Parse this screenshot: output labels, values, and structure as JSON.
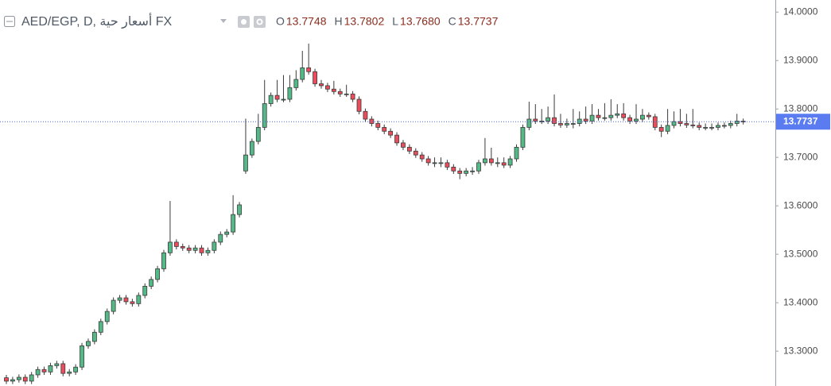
{
  "chart_data": {
    "type": "candlestick",
    "title": "AED/EGP, D, أسعار حية FX",
    "header": [
      {
        "label": "O",
        "value": "13.7748"
      },
      {
        "label": "H",
        "value": "13.7802"
      },
      {
        "label": "L",
        "value": "13.7680"
      },
      {
        "label": "C",
        "value": "13.7737"
      }
    ],
    "up_color": "#53b987",
    "down_color": "#eb4d5c",
    "ylim": [
      13.228,
      14.025
    ],
    "yticks": [
      {
        "value": 14.0,
        "label": "14.0000"
      },
      {
        "value": 13.9,
        "label": "13.9000"
      },
      {
        "value": 13.8,
        "label": "13.8000"
      },
      {
        "value": 13.7,
        "label": "13.7000"
      },
      {
        "value": 13.6,
        "label": "13.6000"
      },
      {
        "value": 13.5,
        "label": "13.5000"
      },
      {
        "value": 13.4,
        "label": "13.4000"
      },
      {
        "value": 13.3,
        "label": "13.3000"
      }
    ],
    "grid": false,
    "last_price": {
      "value": 13.7737,
      "label": "13.7737"
    },
    "open": [
      13.245,
      13.238,
      13.241,
      13.246,
      13.238,
      13.251,
      13.262,
      13.257,
      13.27,
      13.274,
      13.254,
      13.257,
      13.267,
      13.311,
      13.32,
      13.339,
      13.361,
      13.382,
      13.405,
      13.41,
      13.402,
      13.398,
      13.415,
      13.434,
      13.448,
      13.47,
      13.503,
      13.525,
      13.516,
      13.513,
      13.508,
      13.513,
      13.503,
      13.508,
      13.525,
      13.541,
      13.546,
      13.582,
      13.672,
      13.705,
      13.733,
      13.762,
      13.811,
      13.828,
      13.82,
      13.82,
      13.844,
      13.861,
      13.885,
      13.877,
      13.852,
      13.848,
      13.841,
      13.836,
      13.831,
      13.831,
      13.82,
      13.795,
      13.779,
      13.77,
      13.762,
      13.754,
      13.746,
      13.73,
      13.721,
      13.713,
      13.705,
      13.697,
      13.689,
      13.689,
      13.689,
      13.68,
      13.672,
      13.667,
      13.672,
      13.672,
      13.689,
      13.697,
      13.689,
      13.689,
      13.684,
      13.697,
      13.721,
      13.762,
      13.779,
      13.775,
      13.775,
      13.782,
      13.77,
      13.767,
      13.77,
      13.77,
      13.779,
      13.775,
      13.787,
      13.782,
      13.782,
      13.787,
      13.79,
      13.782,
      13.775,
      13.779,
      13.787,
      13.784,
      13.762,
      13.754,
      13.766,
      13.774,
      13.77,
      13.767,
      13.766,
      13.762,
      13.762,
      13.762,
      13.766,
      13.766,
      13.77,
      13.7748
    ],
    "high": [
      13.251,
      13.247,
      13.252,
      13.252,
      13.257,
      13.268,
      13.268,
      13.276,
      13.28,
      13.28,
      13.263,
      13.273,
      13.317,
      13.326,
      13.345,
      13.367,
      13.388,
      13.411,
      13.416,
      13.416,
      13.408,
      13.421,
      13.44,
      13.454,
      13.476,
      13.509,
      13.61,
      13.531,
      13.522,
      13.519,
      13.519,
      13.519,
      13.514,
      13.531,
      13.547,
      13.552,
      13.622,
      13.608,
      13.78,
      13.739,
      13.79,
      13.86,
      13.834,
      13.86,
      13.87,
      13.87,
      13.88,
      13.92,
      13.935,
      13.883,
      13.86,
      13.854,
      13.858,
      13.842,
      13.85,
      13.837,
      13.826,
      13.801,
      13.785,
      13.776,
      13.768,
      13.76,
      13.752,
      13.736,
      13.727,
      13.719,
      13.711,
      13.703,
      13.7,
      13.7,
      13.695,
      13.686,
      13.678,
      13.678,
      13.68,
      13.695,
      13.74,
      13.72,
      13.7,
      13.7,
      13.703,
      13.727,
      13.768,
      13.815,
      13.81,
      13.8,
      13.805,
      13.83,
      13.79,
      13.78,
      13.8,
      13.795,
      13.805,
      13.81,
      13.8,
      13.812,
      13.82,
      13.81,
      13.812,
      13.788,
      13.81,
      13.8,
      13.793,
      13.79,
      13.768,
      13.8,
      13.795,
      13.8,
      13.79,
      13.8,
      13.772,
      13.77,
      13.77,
      13.772,
      13.772,
      13.776,
      13.79,
      13.7802
    ],
    "low": [
      13.232,
      13.232,
      13.235,
      13.232,
      13.232,
      13.245,
      13.251,
      13.251,
      13.264,
      13.248,
      13.248,
      13.251,
      13.261,
      13.305,
      13.314,
      13.333,
      13.355,
      13.376,
      13.399,
      13.396,
      13.392,
      13.392,
      13.409,
      13.428,
      13.442,
      13.464,
      13.497,
      13.51,
      13.507,
      13.502,
      13.502,
      13.497,
      13.497,
      13.502,
      13.519,
      13.535,
      13.54,
      13.576,
      13.666,
      13.699,
      13.727,
      13.756,
      13.805,
      13.814,
      13.814,
      13.814,
      13.838,
      13.855,
      13.871,
      13.846,
      13.842,
      13.835,
      13.83,
      13.825,
      13.825,
      13.814,
      13.789,
      13.773,
      13.764,
      13.756,
      13.748,
      13.74,
      13.724,
      13.715,
      13.707,
      13.699,
      13.691,
      13.683,
      13.68,
      13.68,
      13.674,
      13.666,
      13.655,
      13.661,
      13.664,
      13.666,
      13.683,
      13.683,
      13.68,
      13.678,
      13.678,
      13.691,
      13.715,
      13.756,
      13.769,
      13.769,
      13.769,
      13.764,
      13.761,
      13.761,
      13.76,
      13.764,
      13.769,
      13.769,
      13.776,
      13.776,
      13.776,
      13.781,
      13.776,
      13.769,
      13.769,
      13.773,
      13.778,
      13.756,
      13.742,
      13.748,
      13.76,
      13.764,
      13.761,
      13.76,
      13.756,
      13.756,
      13.756,
      13.756,
      13.76,
      13.76,
      13.764,
      13.768
    ],
    "close": [
      13.238,
      13.241,
      13.246,
      13.238,
      13.251,
      13.262,
      13.257,
      13.27,
      13.274,
      13.254,
      13.257,
      13.267,
      13.311,
      13.32,
      13.339,
      13.361,
      13.382,
      13.405,
      13.41,
      13.402,
      13.398,
      13.415,
      13.434,
      13.448,
      13.47,
      13.503,
      13.525,
      13.516,
      13.513,
      13.508,
      13.513,
      13.503,
      13.508,
      13.525,
      13.541,
      13.546,
      13.582,
      13.602,
      13.705,
      13.733,
      13.762,
      13.811,
      13.828,
      13.82,
      13.82,
      13.844,
      13.861,
      13.885,
      13.877,
      13.852,
      13.848,
      13.841,
      13.836,
      13.831,
      13.831,
      13.82,
      13.795,
      13.779,
      13.77,
      13.762,
      13.754,
      13.746,
      13.73,
      13.721,
      13.713,
      13.705,
      13.697,
      13.689,
      13.689,
      13.689,
      13.68,
      13.672,
      13.667,
      13.672,
      13.672,
      13.689,
      13.697,
      13.689,
      13.689,
      13.684,
      13.697,
      13.721,
      13.762,
      13.779,
      13.775,
      13.775,
      13.782,
      13.77,
      13.767,
      13.77,
      13.77,
      13.779,
      13.775,
      13.787,
      13.782,
      13.782,
      13.787,
      13.79,
      13.782,
      13.775,
      13.779,
      13.787,
      13.784,
      13.762,
      13.754,
      13.766,
      13.774,
      13.77,
      13.767,
      13.766,
      13.762,
      13.762,
      13.762,
      13.766,
      13.766,
      13.77,
      13.775,
      13.7737
    ]
  }
}
